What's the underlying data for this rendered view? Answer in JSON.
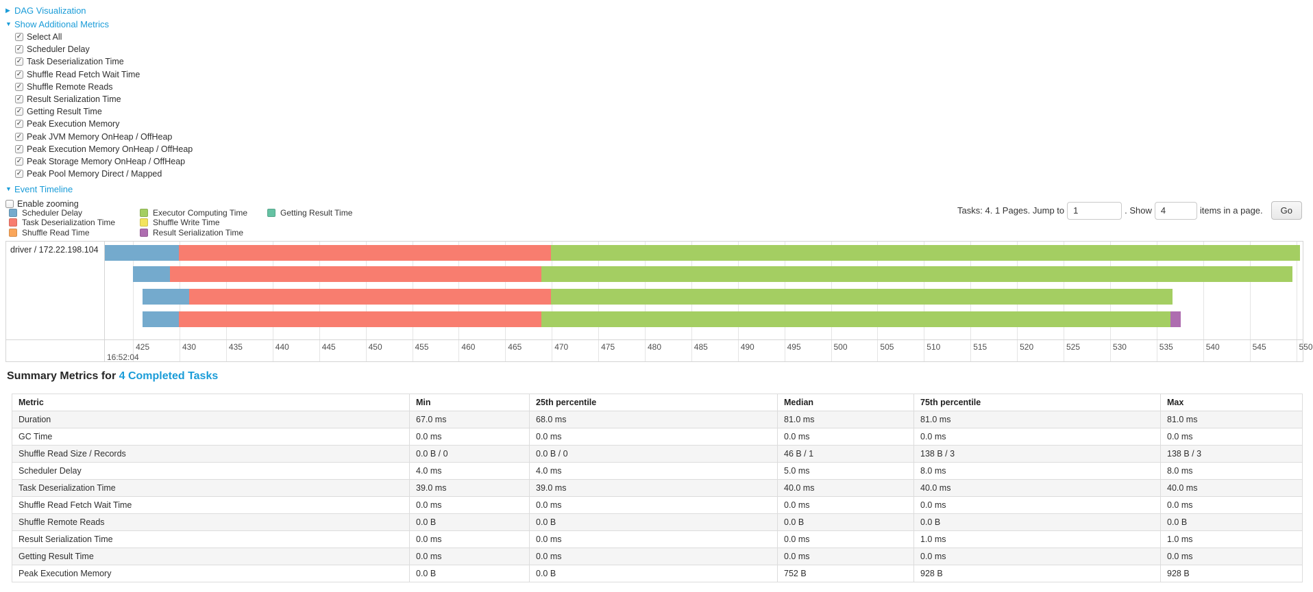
{
  "icons": {
    "check": "✓",
    "triangle_right": "▶",
    "triangle_down": "▼"
  },
  "colors": {
    "link": "#1a9cd8",
    "chart_border": "#d4d4d4",
    "gridline": "#e4e4e4",
    "row_stripe": "#f5f5f5",
    "table_border": "#dcdcdc"
  },
  "controls": {
    "dag_label": "DAG Visualization",
    "metrics_label": "Show Additional Metrics",
    "metrics_items": [
      "Select All",
      "Scheduler Delay",
      "Task Deserialization Time",
      "Shuffle Read Fetch Wait Time",
      "Shuffle Remote Reads",
      "Result Serialization Time",
      "Getting Result Time",
      "Peak Execution Memory",
      "Peak JVM Memory OnHeap / OffHeap",
      "Peak Execution Memory OnHeap / OffHeap",
      "Peak Storage Memory OnHeap / OffHeap",
      "Peak Pool Memory Direct / Mapped"
    ],
    "event_timeline_label": "Event Timeline",
    "enable_zooming_label": "Enable zooming"
  },
  "legend_columns": [
    [
      {
        "label": "Scheduler Delay",
        "color": "#74AACD"
      },
      {
        "label": "Task Deserialization Time",
        "color": "#F87D6F"
      },
      {
        "label": "Shuffle Read Time",
        "color": "#FAA65A"
      }
    ],
    [
      {
        "label": "Executor Computing Time",
        "color": "#A4CE62"
      },
      {
        "label": "Shuffle Write Time",
        "color": "#F3E35D"
      },
      {
        "label": "Result Serialization Time",
        "color": "#AE6DB0"
      }
    ],
    [
      {
        "label": "Getting Result Time",
        "color": "#65C2A3"
      }
    ]
  ],
  "pagination": {
    "tasks_text": "Tasks: 4. 1 Pages. Jump to",
    "jump_value": "1",
    "show_text": ". Show",
    "show_value": "4",
    "items_text": "items in a page.",
    "go_label": "Go"
  },
  "chart_data": {
    "type": "timeline",
    "title": "Event Timeline",
    "row_label": "driver / 172.22.198.104",
    "time_label": "16:52:04",
    "x_unit": "milliseconds within 16:52:04",
    "x_min": 421.9,
    "x_max": 550.7,
    "tick_start": 425,
    "tick_step": 5,
    "tick_end": 550,
    "tasks": [
      {
        "segments": [
          {
            "name": "Scheduler Delay",
            "start": 421.9,
            "end": 429.9
          },
          {
            "name": "Task Deserialization Time",
            "start": 429.9,
            "end": 469.9
          },
          {
            "name": "Executor Computing Time",
            "start": 469.9,
            "end": 550.4
          }
        ]
      },
      {
        "segments": [
          {
            "name": "Scheduler Delay",
            "start": 425.0,
            "end": 429.0
          },
          {
            "name": "Task Deserialization Time",
            "start": 429.0,
            "end": 468.9
          },
          {
            "name": "Executor Computing Time",
            "start": 468.9,
            "end": 549.6
          }
        ]
      },
      {
        "segments": [
          {
            "name": "Scheduler Delay",
            "start": 426.0,
            "end": 431.0
          },
          {
            "name": "Task Deserialization Time",
            "start": 431.0,
            "end": 469.9
          },
          {
            "name": "Executor Computing Time",
            "start": 469.9,
            "end": 536.7
          }
        ]
      },
      {
        "segments": [
          {
            "name": "Scheduler Delay",
            "start": 426.0,
            "end": 429.9
          },
          {
            "name": "Task Deserialization Time",
            "start": 429.9,
            "end": 468.9
          },
          {
            "name": "Executor Computing Time",
            "start": 468.9,
            "end": 536.5
          },
          {
            "name": "Result Serialization Time",
            "start": 536.5,
            "end": 537.6
          }
        ]
      }
    ]
  },
  "summary": {
    "heading_prefix": "Summary Metrics for ",
    "heading_link": "4 Completed Tasks",
    "table": {
      "headers": [
        "Metric",
        "Min",
        "25th percentile",
        "Median",
        "75th percentile",
        "Max"
      ],
      "rows": [
        [
          "Duration",
          "67.0 ms",
          "68.0 ms",
          "81.0 ms",
          "81.0 ms",
          "81.0 ms"
        ],
        [
          "GC Time",
          "0.0 ms",
          "0.0 ms",
          "0.0 ms",
          "0.0 ms",
          "0.0 ms"
        ],
        [
          "Shuffle Read Size / Records",
          "0.0 B / 0",
          "0.0 B / 0",
          "46 B / 1",
          "138 B / 3",
          "138 B / 3"
        ],
        [
          "Scheduler Delay",
          "4.0 ms",
          "4.0 ms",
          "5.0 ms",
          "8.0 ms",
          "8.0 ms"
        ],
        [
          "Task Deserialization Time",
          "39.0 ms",
          "39.0 ms",
          "40.0 ms",
          "40.0 ms",
          "40.0 ms"
        ],
        [
          "Shuffle Read Fetch Wait Time",
          "0.0 ms",
          "0.0 ms",
          "0.0 ms",
          "0.0 ms",
          "0.0 ms"
        ],
        [
          "Shuffle Remote Reads",
          "0.0 B",
          "0.0 B",
          "0.0 B",
          "0.0 B",
          "0.0 B"
        ],
        [
          "Result Serialization Time",
          "0.0 ms",
          "0.0 ms",
          "0.0 ms",
          "1.0 ms",
          "1.0 ms"
        ],
        [
          "Getting Result Time",
          "0.0 ms",
          "0.0 ms",
          "0.0 ms",
          "0.0 ms",
          "0.0 ms"
        ],
        [
          "Peak Execution Memory",
          "0.0 B",
          "0.0 B",
          "752 B",
          "928 B",
          "928 B"
        ]
      ]
    }
  }
}
